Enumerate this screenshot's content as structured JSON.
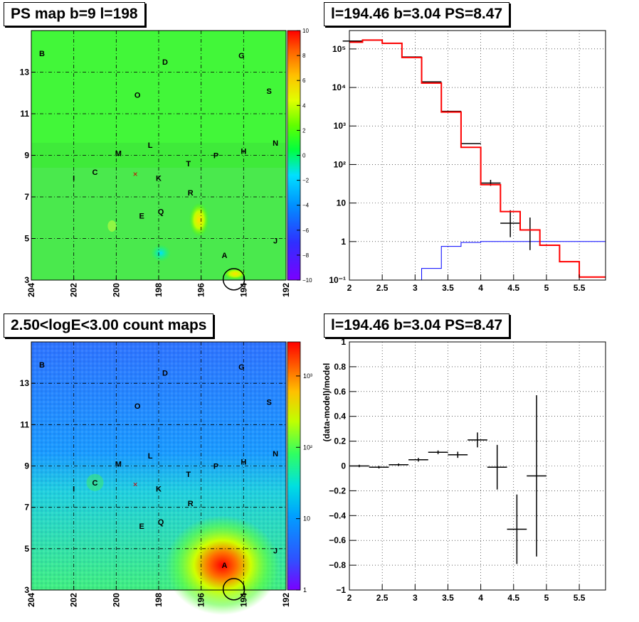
{
  "titles": {
    "ps_map": "PS map b=9 l=198",
    "spectrum": "l=194.46 b=3.04 PS=8.47",
    "count_map": "2.50<logE<3.00 count maps",
    "residual": "l=194.46 b=3.04 PS=8.47"
  },
  "colors": {
    "data": "#000000",
    "model": "#ff0000",
    "background": "#0000ff",
    "grid": "#000000"
  },
  "chart_data": [
    {
      "type": "heatmap",
      "title": "PS map b=9 l=198",
      "xlim": [
        204,
        192
      ],
      "ylim": [
        3,
        15
      ],
      "xticks": [
        "204",
        "202",
        "200",
        "198",
        "196",
        "194",
        "192"
      ],
      "yticks": [
        "3",
        "5",
        "7",
        "9",
        "11",
        "13"
      ],
      "colorbar": {
        "min": -10,
        "max": 10,
        "ticks": [
          "10",
          "8",
          "6",
          "4",
          "2",
          "0",
          "−2",
          "−4",
          "−6",
          "−8",
          "−10"
        ]
      },
      "sources": [
        {
          "name": "B",
          "l": 203.5,
          "b": 13.9
        },
        {
          "name": "D",
          "l": 197.7,
          "b": 13.5
        },
        {
          "name": "G",
          "l": 194.1,
          "b": 13.8
        },
        {
          "name": "O",
          "l": 199.0,
          "b": 11.9
        },
        {
          "name": "S",
          "l": 192.8,
          "b": 12.1
        },
        {
          "name": "N",
          "l": 192.5,
          "b": 9.6
        },
        {
          "name": "L",
          "l": 198.4,
          "b": 9.5
        },
        {
          "name": "M",
          "l": 199.9,
          "b": 9.1
        },
        {
          "name": "H",
          "l": 194.0,
          "b": 9.2
        },
        {
          "name": "P",
          "l": 195.3,
          "b": 9.0
        },
        {
          "name": "T",
          "l": 196.6,
          "b": 8.6
        },
        {
          "name": "C",
          "l": 201.0,
          "b": 8.2
        },
        {
          "name": "I",
          "l": 202.0,
          "b": 7.9
        },
        {
          "name": "K",
          "l": 198.0,
          "b": 7.9
        },
        {
          "name": "R",
          "l": 196.5,
          "b": 7.2
        },
        {
          "name": "Q",
          "l": 197.9,
          "b": 6.3
        },
        {
          "name": "E",
          "l": 198.8,
          "b": 6.1
        },
        {
          "name": "A",
          "l": 194.9,
          "b": 4.2
        },
        {
          "name": "J",
          "l": 192.5,
          "b": 4.9
        }
      ],
      "cross": {
        "l": 199.1,
        "b": 8.1
      },
      "circle": {
        "l": 194.46,
        "b": 3.04
      }
    },
    {
      "type": "line",
      "title": "l=194.46 b=3.04 PS=8.47",
      "yscale": "log",
      "xlim": [
        2,
        5.9
      ],
      "ylim": [
        0.1,
        300000
      ],
      "xticks": [
        "2",
        "2.5",
        "3",
        "3.5",
        "4",
        "4.5",
        "5",
        "5.5"
      ],
      "yticks": [
        "10⁻¹",
        "1",
        "10",
        "10²",
        "10³",
        "10⁴",
        "10⁵"
      ],
      "bin_edges": [
        1.9,
        2.2,
        2.5,
        2.8,
        3.1,
        3.4,
        3.7,
        4.0,
        4.3,
        4.6,
        4.9,
        5.2,
        5.5,
        5.8,
        5.9
      ],
      "series": [
        {
          "values": [
            150000,
            170000,
            140000,
            60000,
            13000,
            2300,
            280,
            30,
            6,
            2,
            0.8,
            0.3,
            0.12,
            0.12
          ]
        },
        {
          "values": [
            0.1,
            0.1,
            0.1,
            0.1,
            0.2,
            0.75,
            0.95,
            1,
            1,
            1,
            1,
            1,
            1,
            1
          ]
        }
      ],
      "points": [
        {
          "x": 2.05,
          "y": 160000
        },
        {
          "x": 2.35,
          "y": 170000
        },
        {
          "x": 2.65,
          "y": 140000
        },
        {
          "x": 2.95,
          "y": 62000
        },
        {
          "x": 3.25,
          "y": 14000
        },
        {
          "x": 3.55,
          "y": 2400
        },
        {
          "x": 3.85,
          "y": 350
        },
        {
          "x": 4.15,
          "y": 33,
          "yerr": [
            28,
            40
          ]
        },
        {
          "x": 4.45,
          "y": 3,
          "yerr": [
            1.3,
            6.5
          ]
        },
        {
          "x": 4.75,
          "y": 2,
          "yerr": [
            0.6,
            4.2
          ]
        }
      ]
    },
    {
      "type": "heatmap",
      "title": "2.50<logE<3.00 count maps",
      "xlim": [
        204,
        192
      ],
      "ylim": [
        3,
        15
      ],
      "xticks": [
        "204",
        "202",
        "200",
        "198",
        "196",
        "194",
        "192"
      ],
      "yticks": [
        "3",
        "5",
        "7",
        "9",
        "11",
        "13"
      ],
      "colorbar": {
        "scale": "log",
        "min": 1,
        "max": 3000,
        "ticks": [
          "10³",
          "10²",
          "10",
          "1"
        ]
      }
    },
    {
      "type": "scatter",
      "title": "l=194.46 b=3.04 PS=8.47",
      "ylabel": "(data-model)/model",
      "xlim": [
        2,
        5.9
      ],
      "ylim": [
        -1,
        1
      ],
      "xticks": [
        "2",
        "2.5",
        "3",
        "3.5",
        "4",
        "4.5",
        "5",
        "5.5"
      ],
      "yticks": [
        "1",
        "0.8",
        "0.6",
        "0.4",
        "0.2",
        "0",
        "−0.2",
        "−0.4",
        "−0.6",
        "−0.8",
        "−1"
      ],
      "points": [
        {
          "x": 2.15,
          "y": 0.0,
          "xerr": 0.15,
          "yerr": 0.01
        },
        {
          "x": 2.45,
          "y": -0.01,
          "xerr": 0.15,
          "yerr": 0.01
        },
        {
          "x": 2.75,
          "y": 0.01,
          "xerr": 0.15,
          "yerr": 0.01
        },
        {
          "x": 3.05,
          "y": 0.05,
          "xerr": 0.15,
          "yerr": 0.015
        },
        {
          "x": 3.35,
          "y": 0.11,
          "xerr": 0.15,
          "yerr": 0.015
        },
        {
          "x": 3.65,
          "y": 0.09,
          "xerr": 0.15,
          "yerr": 0.025
        },
        {
          "x": 3.95,
          "y": 0.21,
          "xerr": 0.15,
          "yerr": 0.06
        },
        {
          "x": 4.25,
          "y": -0.01,
          "xerr": 0.15,
          "yerr": 0.18
        },
        {
          "x": 4.55,
          "y": -0.51,
          "xerr": 0.15,
          "yerr": 0.28
        },
        {
          "x": 4.85,
          "y": -0.08,
          "xerr": 0.15,
          "yerr": 0.65
        }
      ]
    }
  ]
}
